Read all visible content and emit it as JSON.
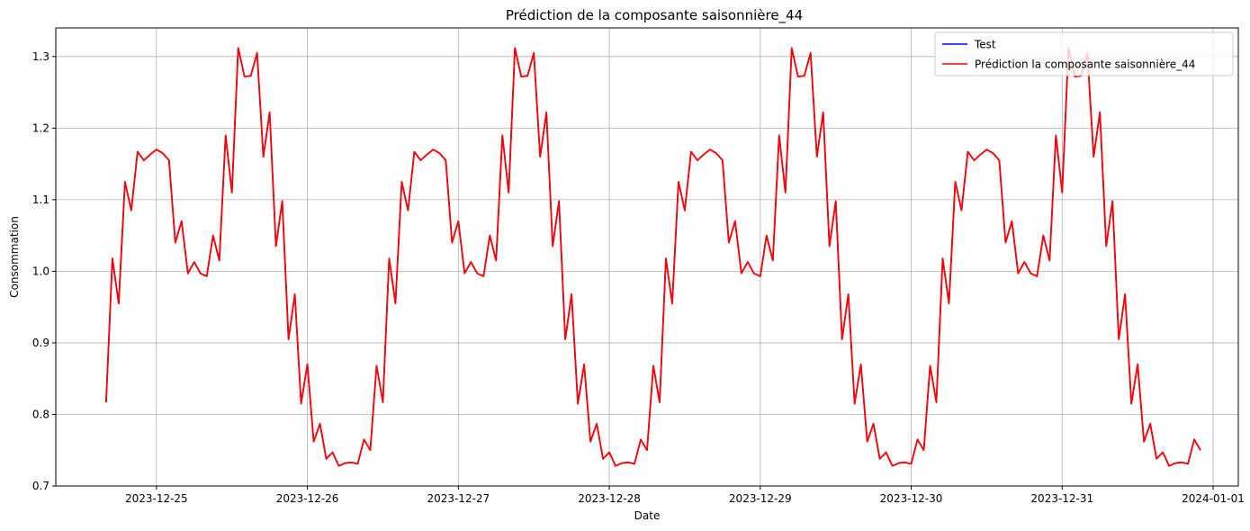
{
  "chart_data": {
    "type": "line",
    "title": "Prédiction de la composante saisonnière_44",
    "xlabel": "Date",
    "ylabel": "Consommation",
    "x_start": "2023-12-24T16:00",
    "x_step_hours": 1,
    "xlim": [
      "2023-12-24T08:00",
      "2024-01-01T04:00"
    ],
    "ylim": [
      0.7,
      1.34
    ],
    "x_ticks": [
      "2023-12-25",
      "2023-12-26",
      "2023-12-27",
      "2023-12-28",
      "2023-12-29",
      "2023-12-30",
      "2023-12-31",
      "2024-01-01"
    ],
    "y_ticks": [
      0.7,
      0.8,
      0.9,
      1.0,
      1.1,
      1.2,
      1.3
    ],
    "y_tick_labels": [
      "0.7",
      "0.8",
      "0.9",
      "1.0",
      "1.1",
      "1.2",
      "1.3"
    ],
    "grid": true,
    "legend_position": "top-right",
    "season_values": [
      0.817,
      1.018,
      0.955,
      1.125,
      1.085,
      1.167,
      1.155,
      1.163,
      1.17,
      1.165,
      1.155,
      1.04,
      1.07,
      0.997,
      1.013,
      0.997,
      0.993,
      1.05,
      1.015,
      1.19,
      1.11,
      1.312,
      1.272,
      1.273,
      1.305,
      1.16,
      1.222,
      1.035,
      1.098,
      0.905,
      0.968,
      0.815,
      0.87,
      0.762,
      0.787,
      0.738,
      0.747,
      0.728,
      0.732,
      0.733,
      0.731,
      0.765,
      0.75,
      0.868
    ],
    "total_points": 175,
    "series": [
      {
        "name": "Test",
        "color": "#0000ff"
      },
      {
        "name": "Prédiction la composante saisonnière_44",
        "color": "#ff0000"
      }
    ]
  }
}
